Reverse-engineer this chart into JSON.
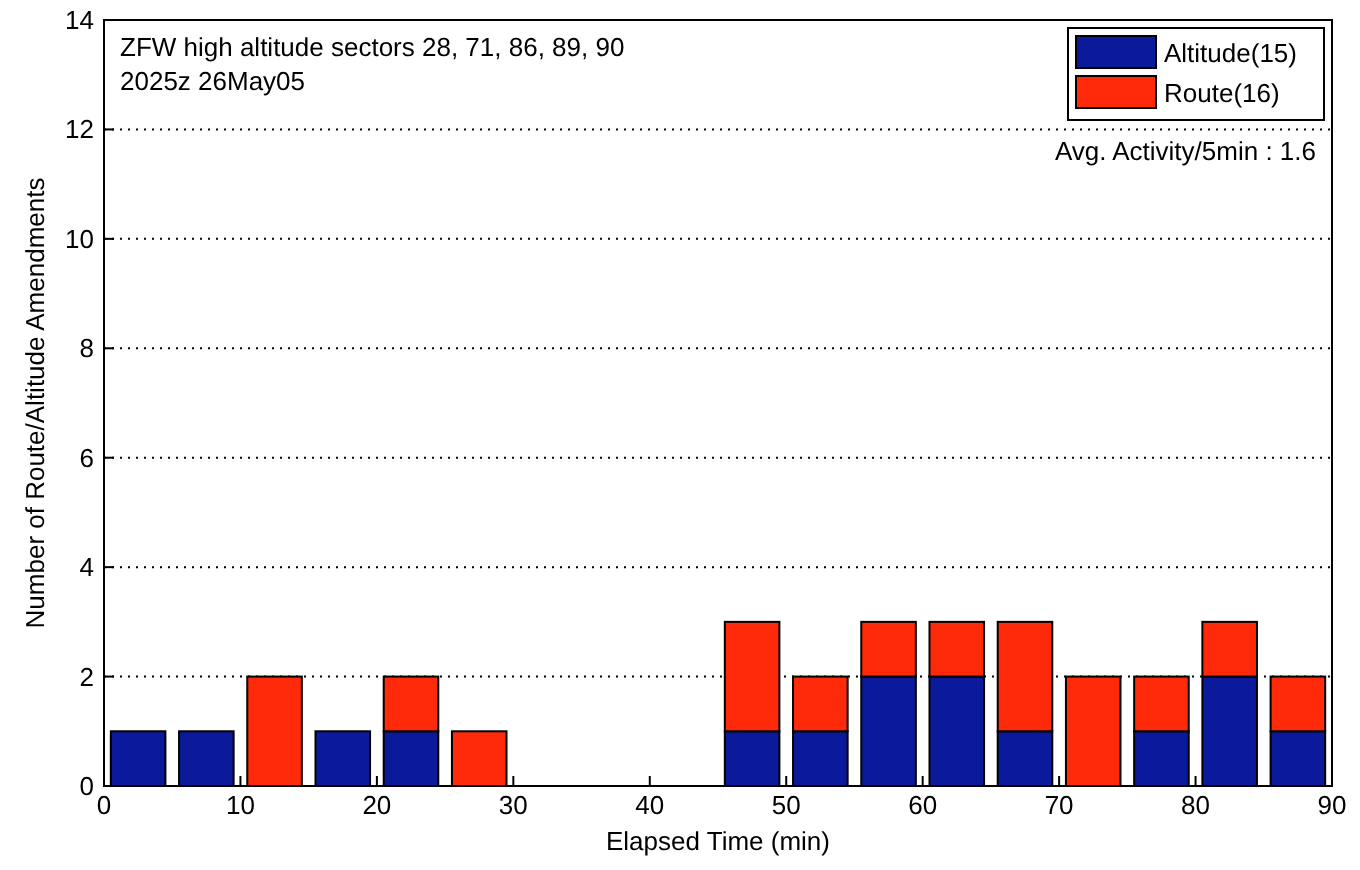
{
  "chart_data": {
    "type": "bar",
    "stacked": true,
    "x": [
      2.5,
      7.5,
      12.5,
      17.5,
      22.5,
      27.5,
      32.5,
      37.5,
      42.5,
      47.5,
      52.5,
      57.5,
      62.5,
      67.5,
      72.5,
      77.5,
      82.5,
      87.5
    ],
    "series": [
      {
        "name": "Altitude(15)",
        "color": "#0a1a9a",
        "values": [
          1,
          1,
          0,
          1,
          1,
          0,
          0,
          0,
          0,
          1,
          1,
          2,
          2,
          1,
          0,
          1,
          2,
          1
        ]
      },
      {
        "name": "Route(16)",
        "color": "#ff2a0a",
        "values": [
          0,
          0,
          2,
          0,
          1,
          1,
          0,
          0,
          0,
          2,
          1,
          1,
          1,
          2,
          2,
          1,
          1,
          1
        ]
      }
    ],
    "xlabel": "Elapsed Time (min)",
    "ylabel": "Number of Route/Altitude Amendments",
    "xlim": [
      0,
      90
    ],
    "xticks": [
      0,
      10,
      20,
      30,
      40,
      50,
      60,
      70,
      80,
      90
    ],
    "ylim": [
      0,
      14
    ],
    "yticks": [
      0,
      2,
      4,
      6,
      8,
      10,
      12,
      14
    ],
    "grid": "y",
    "legend": "top right",
    "annotations": [
      "ZFW high altitude sectors 28, 71, 86, 89, 90",
      "2025z 26May05",
      "Avg. Activity/5min : 1.6"
    ]
  }
}
